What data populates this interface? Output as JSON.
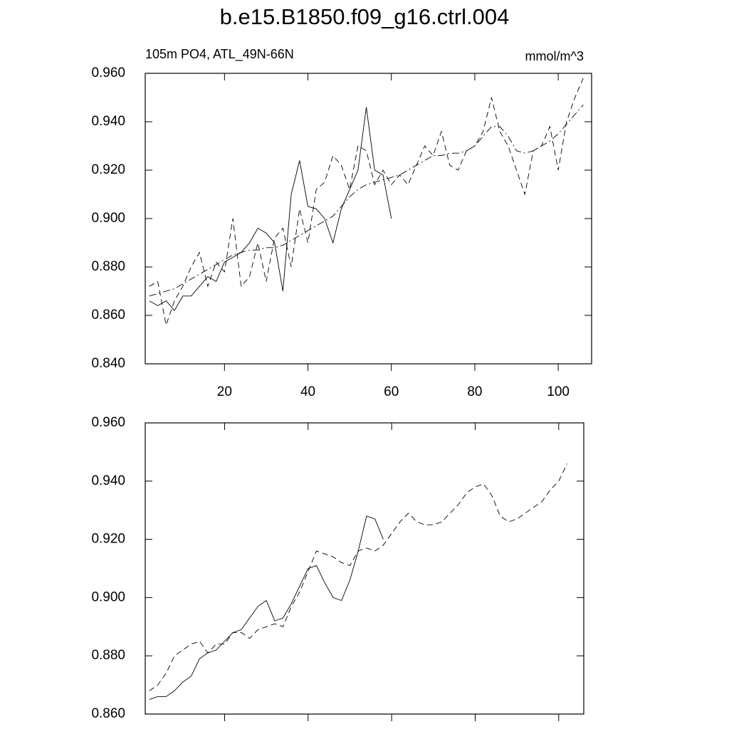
{
  "chart_data": [
    {
      "type": "line",
      "title": "b.e15.B1850.f09_g16.ctrl.004",
      "subtitle": "105m PO4, ATL_49N-66N",
      "units_label": "mmol/m^3",
      "x": [
        2,
        4,
        6,
        8,
        10,
        12,
        14,
        16,
        18,
        20,
        22,
        24,
        26,
        28,
        30,
        32,
        34,
        36,
        38,
        40,
        42,
        44,
        46,
        48,
        50,
        52,
        54,
        56,
        58,
        60,
        62,
        64,
        66,
        68,
        70,
        72,
        74,
        76,
        78,
        80,
        82,
        84,
        86,
        88,
        90,
        92,
        94,
        96,
        98,
        100,
        102,
        104,
        106
      ],
      "xlim": [
        1,
        108
      ],
      "xticks": [
        20,
        40,
        60,
        80,
        100
      ],
      "xtick_labels": true,
      "ylim": [
        0.84,
        0.96
      ],
      "yticks": [
        {
          "value": 0.84,
          "label": "0.840"
        },
        {
          "value": 0.86,
          "label": "0.860"
        },
        {
          "value": 0.88,
          "label": "0.880"
        },
        {
          "value": 0.9,
          "label": "0.900"
        },
        {
          "value": 0.92,
          "label": "0.920"
        },
        {
          "value": 0.94,
          "label": "0.940"
        },
        {
          "value": 0.96,
          "label": "0.960"
        }
      ],
      "series": [
        {
          "color": "#000000",
          "dash": "solid",
          "values": [
            0.866,
            0.864,
            0.866,
            0.862,
            0.868,
            0.868,
            0.872,
            0.876,
            0.874,
            0.882,
            0.884,
            0.886,
            0.89,
            0.896,
            0.894,
            0.89,
            0.87,
            0.91,
            0.924,
            0.905,
            0.904,
            0.9,
            0.89,
            0.904,
            0.912,
            0.92,
            0.946,
            0.92,
            0.918,
            0.9,
            null,
            null,
            null,
            null,
            null,
            null,
            null,
            null,
            null,
            null,
            null,
            null,
            null,
            null,
            null,
            null,
            null,
            null,
            null,
            null,
            null,
            null,
            null
          ]
        },
        {
          "color": "#000000",
          "dash": "dashed",
          "values": [
            0.872,
            0.874,
            0.856,
            0.866,
            0.872,
            0.88,
            0.886,
            0.872,
            0.882,
            0.878,
            0.9,
            0.872,
            0.876,
            0.89,
            0.874,
            0.892,
            0.896,
            0.88,
            0.904,
            0.89,
            0.912,
            0.915,
            0.926,
            0.922,
            0.912,
            0.93,
            0.928,
            0.914,
            0.92,
            0.914,
            0.918,
            0.914,
            0.922,
            0.93,
            0.926,
            0.936,
            0.922,
            0.92,
            0.928,
            0.93,
            0.936,
            0.95,
            0.936,
            0.93,
            0.92,
            0.91,
            0.928,
            0.93,
            0.938,
            0.92,
            0.94,
            0.95,
            0.958
          ]
        },
        {
          "color": "#000000",
          "dash": "dashdot",
          "values": [
            0.868,
            0.869,
            0.87,
            0.871,
            0.873,
            0.875,
            0.877,
            0.879,
            0.881,
            0.883,
            0.885,
            0.886,
            0.887,
            0.887,
            0.888,
            0.888,
            0.889,
            0.891,
            0.893,
            0.895,
            0.897,
            0.899,
            0.901,
            0.905,
            0.909,
            0.912,
            0.914,
            0.915,
            0.916,
            0.917,
            0.918,
            0.92,
            0.922,
            0.924,
            0.926,
            0.926,
            0.927,
            0.927,
            0.928,
            0.93,
            0.934,
            0.938,
            0.938,
            0.934,
            0.928,
            0.927,
            0.928,
            0.93,
            0.932,
            0.935,
            0.939,
            0.943,
            0.947
          ]
        }
      ]
    },
    {
      "type": "line",
      "x": [
        2,
        4,
        6,
        8,
        10,
        12,
        14,
        16,
        18,
        20,
        22,
        24,
        26,
        28,
        30,
        32,
        34,
        36,
        38,
        40,
        42,
        44,
        46,
        48,
        50,
        52,
        54,
        56,
        58,
        60,
        62,
        64,
        66,
        68,
        70,
        72,
        74,
        76,
        78,
        80,
        82,
        84,
        86,
        88,
        90,
        92,
        94,
        96,
        98,
        100,
        102
      ],
      "xlim": [
        1,
        106
      ],
      "xticks": [
        20,
        40,
        60,
        80,
        100
      ],
      "xtick_labels": false,
      "ylim": [
        0.86,
        0.96
      ],
      "yticks": [
        {
          "value": 0.86,
          "label": "0.860"
        },
        {
          "value": 0.88,
          "label": "0.880"
        },
        {
          "value": 0.9,
          "label": "0.900"
        },
        {
          "value": 0.92,
          "label": "0.920"
        },
        {
          "value": 0.94,
          "label": "0.940"
        },
        {
          "value": 0.96,
          "label": "0.960"
        }
      ],
      "series": [
        {
          "color": "#000000",
          "dash": "solid",
          "values": [
            0.865,
            0.866,
            0.866,
            0.868,
            0.871,
            0.873,
            0.879,
            0.881,
            0.882,
            0.885,
            0.888,
            0.889,
            0.893,
            0.897,
            0.899,
            0.892,
            0.893,
            0.898,
            0.904,
            0.91,
            0.911,
            0.905,
            0.9,
            0.899,
            0.906,
            0.916,
            0.928,
            0.927,
            0.92,
            null,
            null,
            null,
            null,
            null,
            null,
            null,
            null,
            null,
            null,
            null,
            null,
            null,
            null,
            null,
            null,
            null,
            null,
            null,
            null,
            null,
            null
          ]
        },
        {
          "color": "#000000",
          "dash": "dashed",
          "values": [
            0.868,
            0.87,
            0.874,
            0.88,
            0.882,
            0.884,
            0.885,
            0.881,
            0.884,
            0.884,
            0.888,
            0.888,
            0.886,
            0.889,
            0.89,
            0.891,
            0.89,
            0.897,
            0.902,
            0.909,
            0.916,
            0.915,
            0.914,
            0.912,
            0.911,
            0.916,
            0.917,
            0.916,
            0.918,
            0.922,
            0.926,
            0.929,
            0.926,
            0.925,
            0.925,
            0.926,
            0.929,
            0.932,
            0.936,
            0.938,
            0.939,
            0.935,
            0.928,
            0.926,
            0.927,
            0.929,
            0.931,
            0.933,
            0.937,
            0.94,
            0.946
          ]
        }
      ]
    }
  ]
}
